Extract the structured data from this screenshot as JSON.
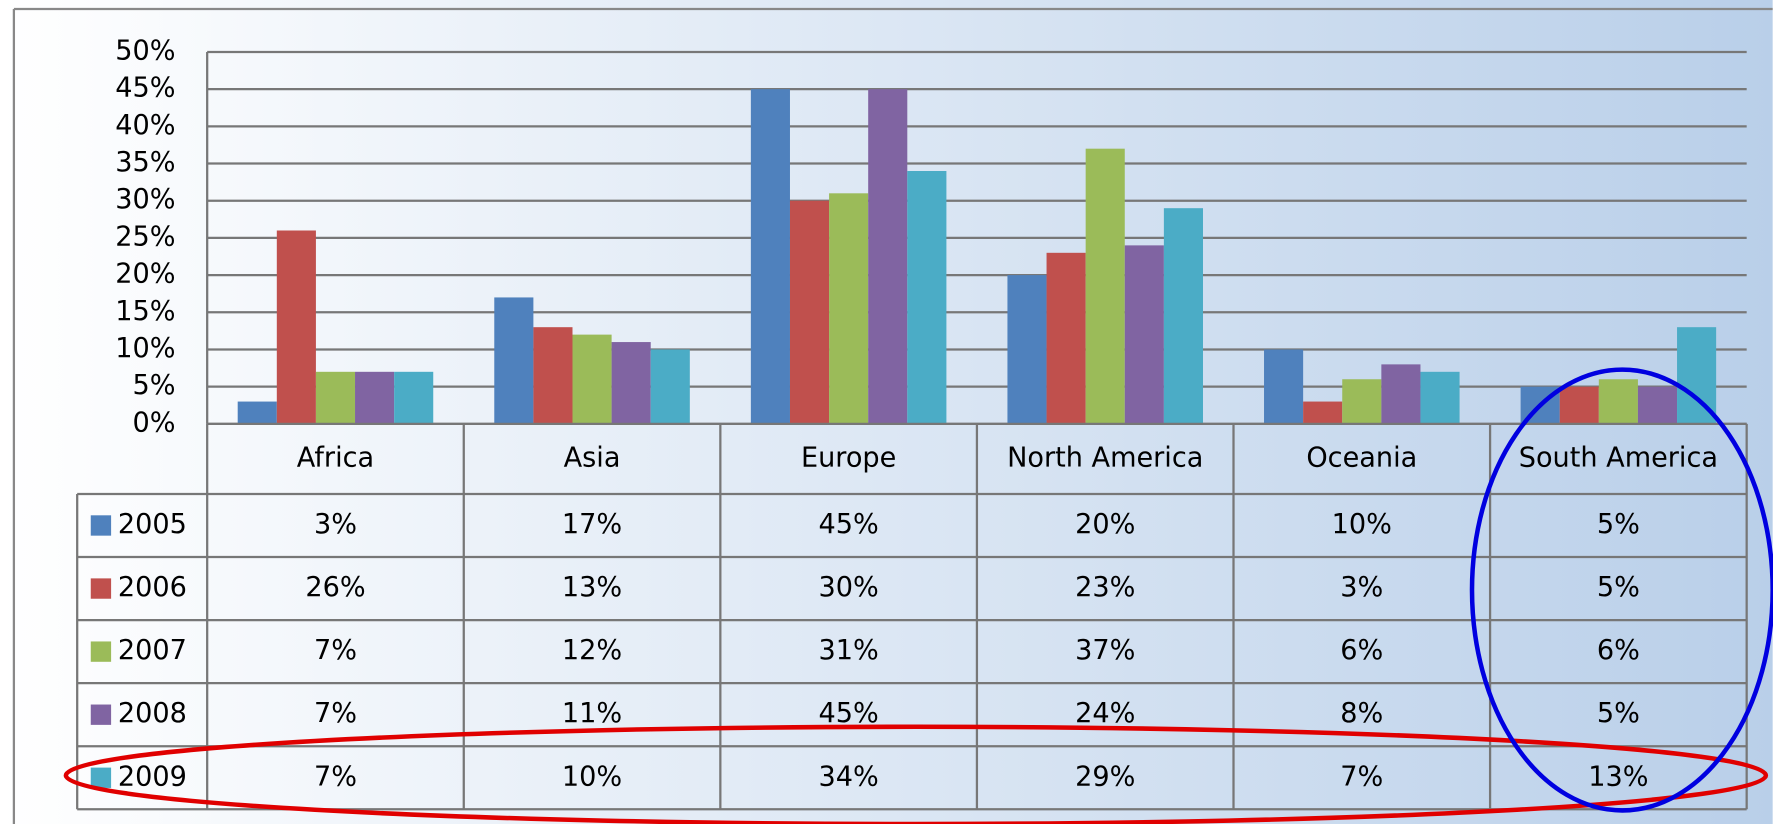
{
  "chart_data": {
    "type": "bar",
    "categories": [
      "Africa",
      "Asia",
      "Europe",
      "North America",
      "Oceania",
      "South America"
    ],
    "series": [
      {
        "name": "2005",
        "color": "#4f81bd",
        "values": [
          3,
          17,
          45,
          20,
          10,
          5
        ],
        "value_labels": [
          "3%",
          "17%",
          "45%",
          "20%",
          "10%",
          "5%"
        ]
      },
      {
        "name": "2006",
        "color": "#c0504d",
        "values": [
          26,
          13,
          30,
          23,
          3,
          5
        ],
        "value_labels": [
          "26%",
          "13%",
          "30%",
          "23%",
          "3%",
          "5%"
        ]
      },
      {
        "name": "2007",
        "color": "#9bbb59",
        "values": [
          7,
          12,
          31,
          37,
          6,
          6
        ],
        "value_labels": [
          "7%",
          "12%",
          "31%",
          "37%",
          "6%",
          "6%"
        ]
      },
      {
        "name": "2008",
        "color": "#8064a2",
        "values": [
          7,
          11,
          45,
          24,
          8,
          5
        ],
        "value_labels": [
          "7%",
          "11%",
          "45%",
          "24%",
          "8%",
          "5%"
        ]
      },
      {
        "name": "2009",
        "color": "#4bacc6",
        "values": [
          7,
          10,
          34,
          29,
          7,
          13
        ],
        "value_labels": [
          "7%",
          "10%",
          "34%",
          "29%",
          "7%",
          "13%"
        ]
      }
    ],
    "ylim": [
      0,
      50
    ],
    "yticks": [
      {
        "value": 0,
        "label": "0%"
      },
      {
        "value": 5,
        "label": "5%"
      },
      {
        "value": 10,
        "label": "10%"
      },
      {
        "value": 15,
        "label": "15%"
      },
      {
        "value": 20,
        "label": "20%"
      },
      {
        "value": 25,
        "label": "25%"
      },
      {
        "value": 30,
        "label": "30%"
      },
      {
        "value": 35,
        "label": "35%"
      },
      {
        "value": 40,
        "label": "40%"
      },
      {
        "value": 45,
        "label": "45%"
      },
      {
        "value": 50,
        "label": "50%"
      }
    ],
    "grid": true
  }
}
